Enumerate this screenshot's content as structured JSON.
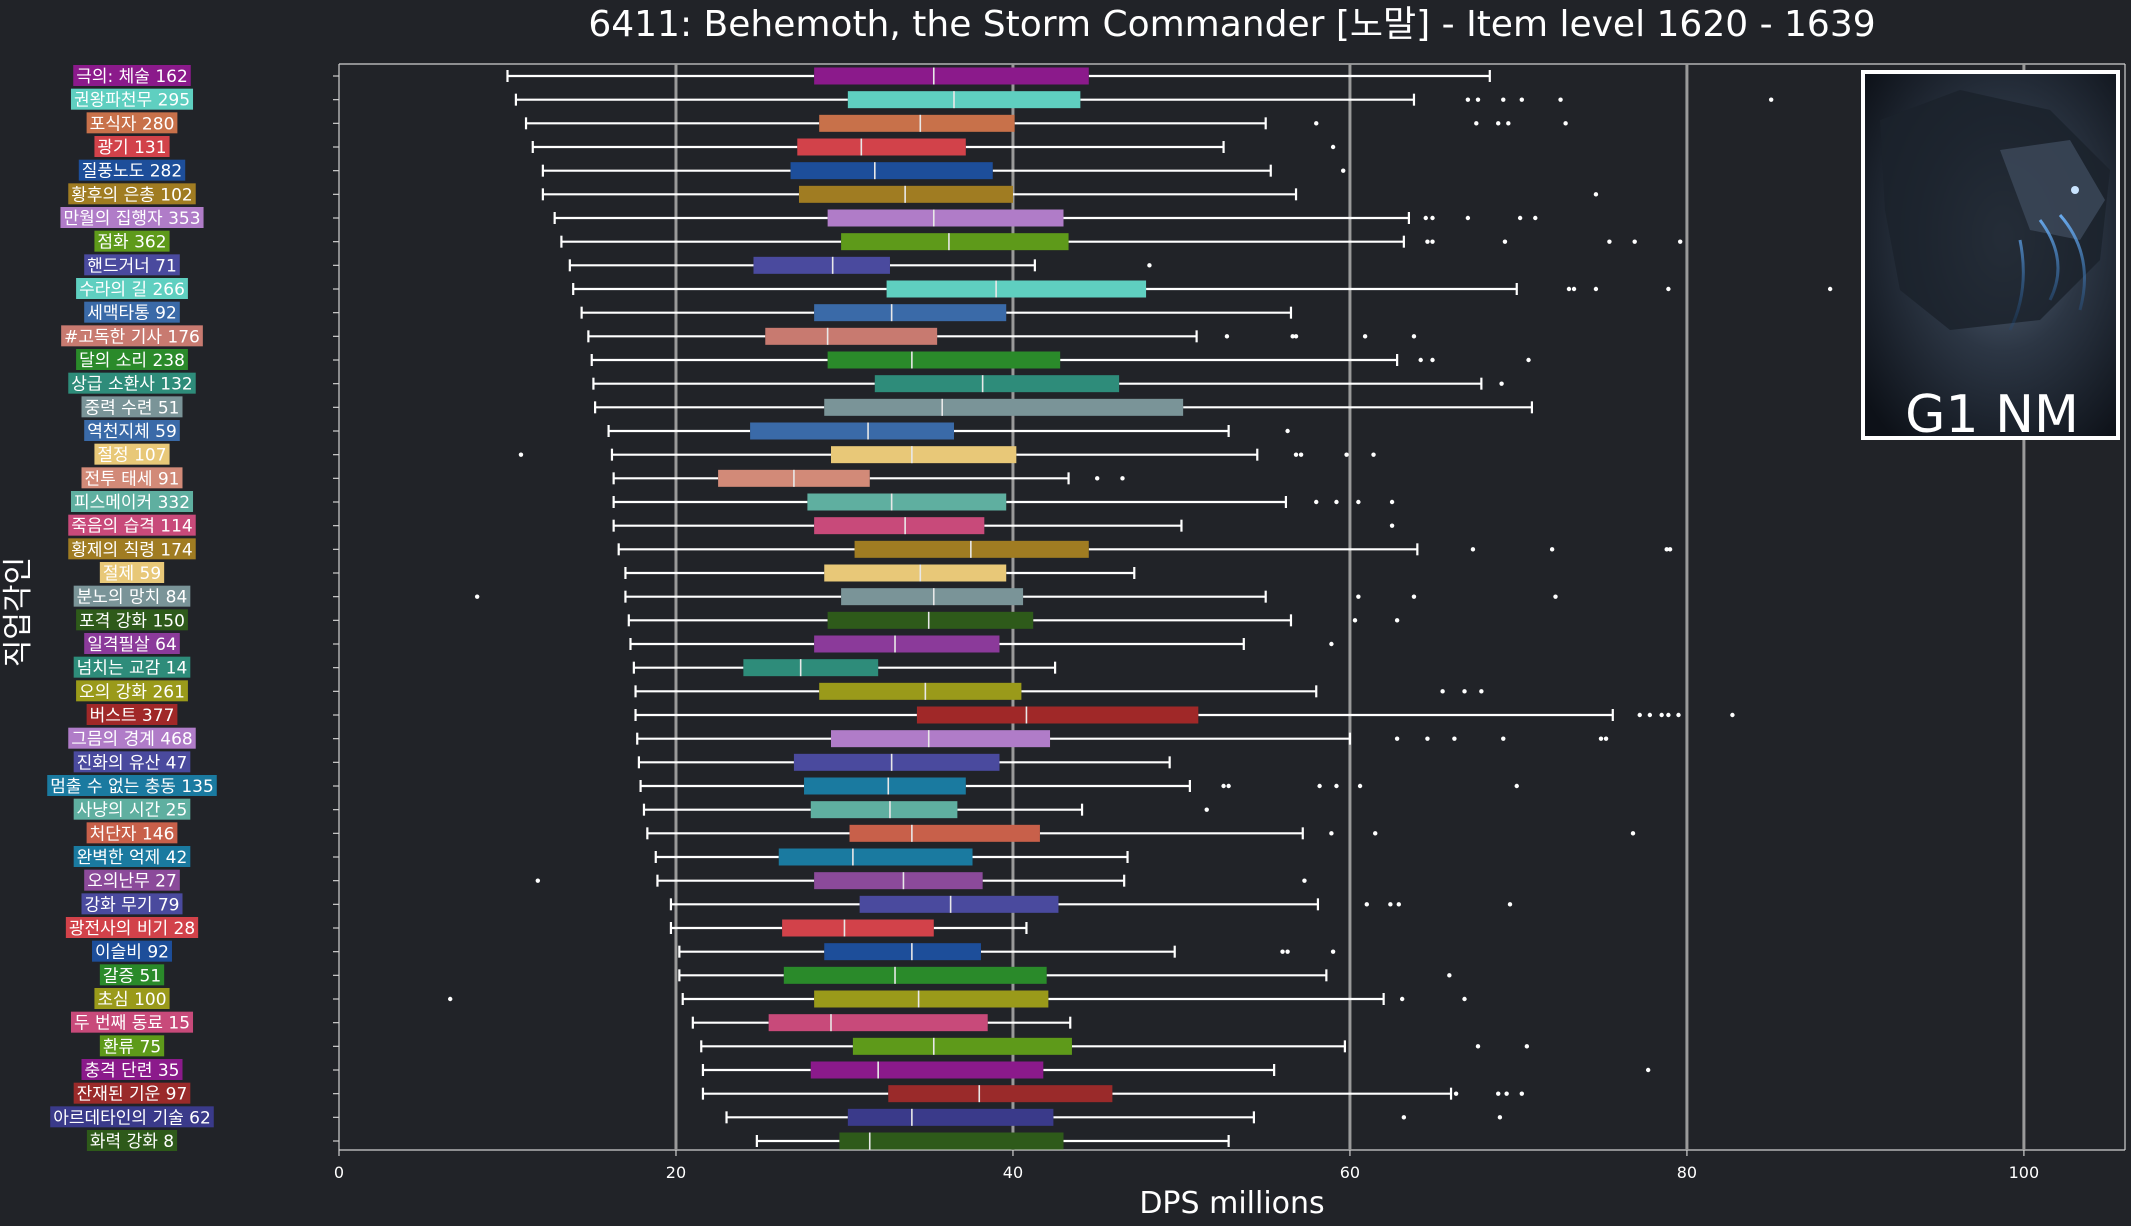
{
  "chart_data": {
    "type": "boxplot",
    "orientation": "horizontal",
    "title": "6411: Behemoth, the Storm Commander [노말] - Item level 1620 - 1639",
    "xlabel": "DPS millions",
    "ylabel": "직업각인",
    "xlim": [
      0,
      106
    ],
    "xticks": [
      0,
      20,
      40,
      60,
      80,
      100
    ],
    "grid": "vertical",
    "badge": "G1 NM",
    "series": [
      {
        "label": "극의: 체술 162",
        "color": "#8B1A8B",
        "min": 10.0,
        "q1": 28.2,
        "median": 35.3,
        "q3": 44.5,
        "max": 68.3,
        "outliers": []
      },
      {
        "label": "권왕파천무 295",
        "color": "#5FCFC0",
        "min": 10.5,
        "q1": 30.2,
        "median": 36.5,
        "q3": 44.0,
        "max": 63.8,
        "outliers": [
          67.0,
          67.6,
          69.1,
          70.2,
          72.5,
          85.0
        ]
      },
      {
        "label": "포식자 280",
        "color": "#C8714A",
        "min": 11.1,
        "q1": 28.5,
        "median": 34.5,
        "q3": 40.1,
        "max": 55.0,
        "outliers": [
          58.0,
          67.5,
          68.8,
          69.4,
          72.8
        ]
      },
      {
        "label": "광기 131",
        "color": "#D2424A",
        "min": 11.5,
        "q1": 27.2,
        "median": 31.0,
        "q3": 37.2,
        "max": 52.5,
        "outliers": [
          59.0
        ]
      },
      {
        "label": "질풍노도 282",
        "color": "#1D4E9A",
        "min": 12.1,
        "q1": 26.8,
        "median": 31.8,
        "q3": 38.8,
        "max": 55.3,
        "outliers": [
          59.6
        ]
      },
      {
        "label": "황후의 은총 102",
        "color": "#A07C22",
        "min": 12.1,
        "q1": 27.3,
        "median": 33.6,
        "q3": 40.0,
        "max": 56.8,
        "outliers": [
          74.6
        ]
      },
      {
        "label": "만월의 집행자 353",
        "color": "#B07CC8",
        "min": 12.8,
        "q1": 29.0,
        "median": 35.3,
        "q3": 43.0,
        "max": 63.5,
        "outliers": [
          64.5,
          64.9,
          67.0,
          70.1,
          71.0
        ]
      },
      {
        "label": "점화 362",
        "color": "#5E9A1A",
        "min": 13.2,
        "q1": 29.8,
        "median": 36.2,
        "q3": 43.3,
        "max": 63.2,
        "outliers": [
          64.6,
          64.9,
          69.2,
          75.4,
          76.9,
          79.6
        ]
      },
      {
        "label": "핸드거너 71",
        "color": "#4A4A9E",
        "min": 13.7,
        "q1": 24.6,
        "median": 29.3,
        "q3": 32.7,
        "max": 41.3,
        "outliers": [
          48.1
        ]
      },
      {
        "label": "수라의 길 266",
        "color": "#5FCFC0",
        "min": 13.9,
        "q1": 32.5,
        "median": 39.0,
        "q3": 47.9,
        "max": 69.9,
        "outliers": [
          73.0,
          73.3,
          74.6,
          78.9,
          88.5
        ]
      },
      {
        "label": "세맥타통 92",
        "color": "#3A6AA8",
        "min": 14.4,
        "q1": 28.2,
        "median": 32.8,
        "q3": 39.6,
        "max": 56.5,
        "outliers": []
      },
      {
        "label": "#고독한 기사 176",
        "color": "#C87A70",
        "min": 14.8,
        "q1": 25.3,
        "median": 29.0,
        "q3": 35.5,
        "max": 50.9,
        "outliers": [
          52.7,
          56.6,
          56.8,
          60.9,
          63.8
        ]
      },
      {
        "label": "달의 소리 238",
        "color": "#2A8A2A",
        "min": 15.0,
        "q1": 29.0,
        "median": 34.0,
        "q3": 42.8,
        "max": 62.8,
        "outliers": [
          64.2,
          64.9,
          70.6
        ]
      },
      {
        "label": "상급 소환사 132",
        "color": "#2E8C7A",
        "min": 15.1,
        "q1": 31.8,
        "median": 38.2,
        "q3": 46.3,
        "max": 67.8,
        "outliers": [
          69.0
        ]
      },
      {
        "label": "중력 수련 51",
        "color": "#7A9498",
        "min": 15.2,
        "q1": 28.8,
        "median": 35.8,
        "q3": 50.1,
        "max": 70.8,
        "outliers": []
      },
      {
        "label": "역천지체 59",
        "color": "#3A6AA8",
        "min": 16.0,
        "q1": 24.4,
        "median": 31.4,
        "q3": 36.5,
        "max": 52.8,
        "outliers": [
          56.3
        ]
      },
      {
        "label": "절정 107",
        "color": "#E8C878",
        "min": 16.2,
        "q1": 29.2,
        "median": 34.0,
        "q3": 40.2,
        "max": 54.5,
        "outliers": [
          10.8,
          56.8,
          57.1,
          59.8,
          61.4
        ]
      },
      {
        "label": "전투 태세 91",
        "color": "#D28A78",
        "min": 16.3,
        "q1": 22.5,
        "median": 27.0,
        "q3": 31.5,
        "max": 43.3,
        "outliers": [
          45.0,
          46.5
        ]
      },
      {
        "label": "피스메이커 332",
        "color": "#5FAFA0",
        "min": 16.3,
        "q1": 27.8,
        "median": 32.8,
        "q3": 39.6,
        "max": 56.2,
        "outliers": [
          58.0,
          59.2,
          60.5,
          62.5
        ]
      },
      {
        "label": "죽음의 습격 114",
        "color": "#C84A7A",
        "min": 16.3,
        "q1": 28.2,
        "median": 33.6,
        "q3": 38.3,
        "max": 50.0,
        "outliers": [
          62.5
        ]
      },
      {
        "label": "황제의 칙령 174",
        "color": "#A07C22",
        "min": 16.6,
        "q1": 30.6,
        "median": 37.5,
        "q3": 44.5,
        "max": 64.0,
        "outliers": [
          67.3,
          72.0,
          78.8,
          79.0
        ]
      },
      {
        "label": "절제 59",
        "color": "#E8C878",
        "min": 17.0,
        "q1": 28.8,
        "median": 34.5,
        "q3": 39.6,
        "max": 47.2,
        "outliers": []
      },
      {
        "label": "분노의 망치 84",
        "color": "#7A9498",
        "min": 17.0,
        "q1": 29.8,
        "median": 35.3,
        "q3": 40.6,
        "max": 55.0,
        "outliers": [
          8.2,
          60.5,
          63.8,
          72.2
        ]
      },
      {
        "label": "포격 강화 150",
        "color": "#2E5A1A",
        "min": 17.2,
        "q1": 29.0,
        "median": 35.0,
        "q3": 41.2,
        "max": 56.5,
        "outliers": [
          60.3,
          62.8
        ]
      },
      {
        "label": "일격필살 64",
        "color": "#8B3A9A",
        "min": 17.3,
        "q1": 28.2,
        "median": 33.0,
        "q3": 39.2,
        "max": 53.7,
        "outliers": [
          58.9
        ]
      },
      {
        "label": "넘치는 교감 14",
        "color": "#2E8C7A",
        "min": 17.5,
        "q1": 24.0,
        "median": 27.4,
        "q3": 32.0,
        "max": 42.5,
        "outliers": []
      },
      {
        "label": "오의 강화 261",
        "color": "#9A9A1A",
        "min": 17.6,
        "q1": 28.5,
        "median": 34.8,
        "q3": 40.5,
        "max": 58.0,
        "outliers": [
          65.5,
          66.8,
          67.8
        ]
      },
      {
        "label": "버스트 377",
        "color": "#A02828",
        "min": 17.6,
        "q1": 34.3,
        "median": 40.8,
        "q3": 51.0,
        "max": 75.6,
        "outliers": [
          77.2,
          77.8,
          78.5,
          78.9,
          79.5,
          82.7
        ]
      },
      {
        "label": "그믐의 경계 468",
        "color": "#B07CC8",
        "min": 17.7,
        "q1": 29.2,
        "median": 35.0,
        "q3": 42.2,
        "max": 60.0,
        "outliers": [
          62.8,
          64.6,
          66.2,
          69.1,
          74.9,
          75.2
        ]
      },
      {
        "label": "진화의 유산 47",
        "color": "#4A4A9E",
        "min": 17.8,
        "q1": 27.0,
        "median": 32.8,
        "q3": 39.2,
        "max": 49.3,
        "outliers": []
      },
      {
        "label": "멈출 수 없는 충동 135",
        "color": "#1A7AA0",
        "min": 17.9,
        "q1": 27.6,
        "median": 32.6,
        "q3": 37.2,
        "max": 50.5,
        "outliers": [
          52.5,
          52.8,
          58.2,
          59.2,
          60.6,
          69.9
        ]
      },
      {
        "label": "사냥의 시간 25",
        "color": "#5FAFA0",
        "min": 18.1,
        "q1": 28.0,
        "median": 32.7,
        "q3": 36.7,
        "max": 44.1,
        "outliers": [
          51.5
        ]
      },
      {
        "label": "처단자 146",
        "color": "#C8604A",
        "min": 18.3,
        "q1": 30.3,
        "median": 34.0,
        "q3": 41.6,
        "max": 57.2,
        "outliers": [
          58.9,
          61.5,
          76.8
        ]
      },
      {
        "label": "완벽한 억제 42",
        "color": "#1A7AA0",
        "min": 18.8,
        "q1": 26.1,
        "median": 30.5,
        "q3": 37.6,
        "max": 46.8,
        "outliers": []
      },
      {
        "label": "오의난무 27",
        "color": "#8B4A9A",
        "min": 18.9,
        "q1": 28.2,
        "median": 33.5,
        "q3": 38.2,
        "max": 46.6,
        "outliers": [
          11.8,
          57.3
        ]
      },
      {
        "label": "강화 무기 79",
        "color": "#4A4A9E",
        "min": 19.7,
        "q1": 30.9,
        "median": 36.3,
        "q3": 42.7,
        "max": 58.1,
        "outliers": [
          61.0,
          62.4,
          62.9,
          69.5
        ]
      },
      {
        "label": "광전사의 비기 28",
        "color": "#D2424A",
        "min": 19.7,
        "q1": 26.3,
        "median": 30.0,
        "q3": 35.3,
        "max": 40.8,
        "outliers": []
      },
      {
        "label": "이슬비 92",
        "color": "#1D4E9A",
        "min": 20.2,
        "q1": 28.8,
        "median": 34.0,
        "q3": 38.1,
        "max": 49.6,
        "outliers": [
          56.0,
          56.3,
          59.0
        ]
      },
      {
        "label": "갈증 51",
        "color": "#2A8A2A",
        "min": 20.2,
        "q1": 26.4,
        "median": 33.0,
        "q3": 42.0,
        "max": 58.6,
        "outliers": [
          65.9
        ]
      },
      {
        "label": "초심 100",
        "color": "#9A9A1A",
        "min": 20.4,
        "q1": 28.2,
        "median": 34.4,
        "q3": 42.1,
        "max": 62.0,
        "outliers": [
          6.6,
          63.1,
          66.8
        ]
      },
      {
        "label": "두 번째 동료 15",
        "color": "#C84A7A",
        "min": 21.0,
        "q1": 25.5,
        "median": 29.2,
        "q3": 38.5,
        "max": 43.4,
        "outliers": []
      },
      {
        "label": "환류 75",
        "color": "#5E9A1A",
        "min": 21.5,
        "q1": 30.5,
        "median": 35.3,
        "q3": 43.5,
        "max": 59.7,
        "outliers": [
          67.6,
          70.5
        ]
      },
      {
        "label": "충격 단련 35",
        "color": "#8B1A8B",
        "min": 21.6,
        "q1": 28.0,
        "median": 32.0,
        "q3": 41.8,
        "max": 55.5,
        "outliers": [
          77.7
        ]
      },
      {
        "label": "잔재된 기운 97",
        "color": "#9A2A2A",
        "min": 21.6,
        "q1": 32.6,
        "median": 38.0,
        "q3": 45.9,
        "max": 66.0,
        "outliers": [
          66.3,
          68.8,
          69.3,
          70.2
        ]
      },
      {
        "label": "아르데타인의 기술 62",
        "color": "#3A3A8A",
        "min": 23.0,
        "q1": 30.2,
        "median": 34.0,
        "q3": 42.4,
        "max": 54.3,
        "outliers": [
          63.2,
          68.9
        ]
      },
      {
        "label": "화력 강화 8",
        "color": "#2E5A1A",
        "min": 24.8,
        "q1": 29.7,
        "median": 31.5,
        "q3": 43.0,
        "max": 52.8,
        "outliers": []
      }
    ]
  }
}
